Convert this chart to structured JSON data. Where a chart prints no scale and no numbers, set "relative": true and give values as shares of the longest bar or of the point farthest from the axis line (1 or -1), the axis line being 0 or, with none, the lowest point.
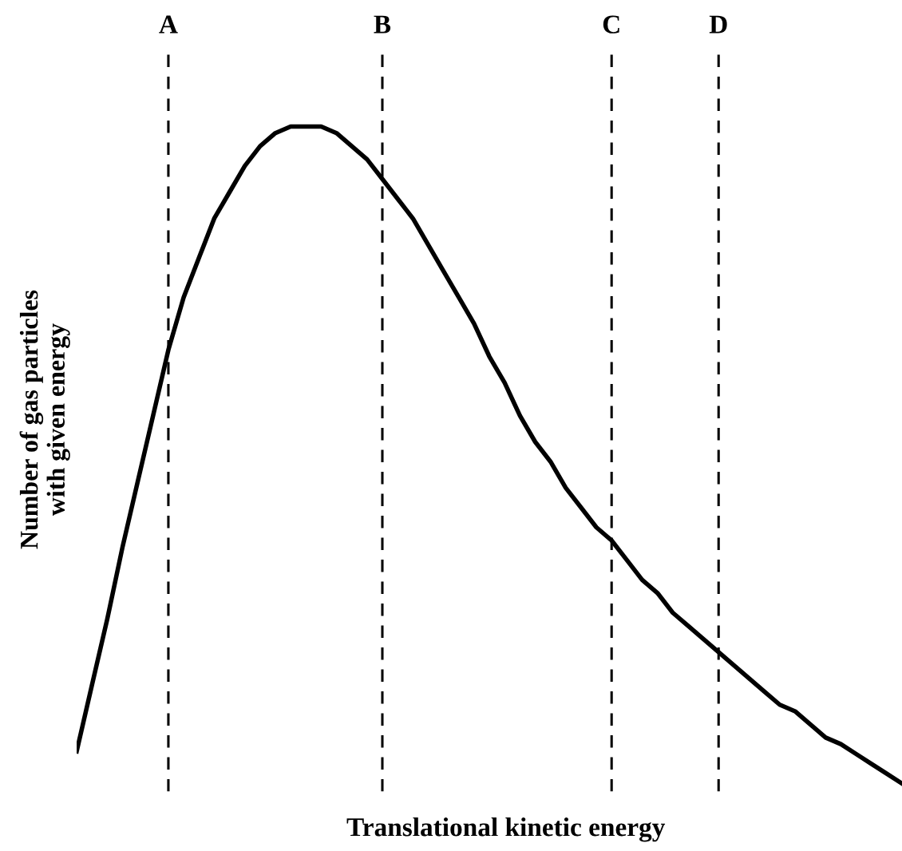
{
  "chart_data": {
    "type": "line",
    "relative": true,
    "xlabel": "Translational kinetic energy",
    "ylabel": "Number of gas particles\nwith given energy",
    "categories": [
      null,
      null,
      null,
      null,
      null,
      null,
      "A",
      null,
      null,
      null,
      null,
      null,
      null,
      null,
      null,
      null,
      null,
      null,
      null,
      null,
      "B",
      null,
      null,
      null,
      null,
      null,
      null,
      null,
      null,
      null,
      null,
      null,
      null,
      null,
      null,
      "C",
      null,
      null,
      null,
      null,
      null,
      null,
      "D",
      null,
      null,
      null,
      null,
      null,
      null,
      null,
      null,
      null,
      null,
      null,
      null
    ],
    "series": [
      {
        "color": "#000000",
        "values": [
          0.049,
          0.15,
          0.25,
          0.36,
          0.46,
          0.56,
          0.66,
          0.74,
          0.8,
          0.86,
          0.9,
          0.94,
          0.97,
          0.99,
          1.0,
          1.0,
          1.0,
          0.99,
          0.97,
          0.95,
          0.92,
          0.89,
          0.86,
          0.82,
          0.78,
          0.74,
          0.7,
          0.65,
          0.61,
          0.56,
          0.52,
          0.49,
          0.45,
          0.42,
          0.39,
          0.37,
          0.34,
          0.31,
          0.29,
          0.26,
          0.24,
          0.22,
          0.2,
          0.18,
          0.16,
          0.14,
          0.12,
          0.11,
          0.09,
          0.07,
          0.06,
          0.045,
          0.03,
          0.015,
          0.0
        ]
      }
    ],
    "ref_lines": [
      {
        "axis": "x",
        "value": "A",
        "color": "#000000",
        "line_style": "dashed"
      },
      {
        "axis": "x",
        "value": "B",
        "color": "#000000",
        "line_style": "dashed"
      },
      {
        "axis": "x",
        "value": "C",
        "color": "#000000",
        "line_style": "dashed"
      },
      {
        "axis": "x",
        "value": "D",
        "color": "#000000",
        "line_style": "dashed"
      }
    ],
    "legend": false,
    "marker": "none",
    "line_style": "solid",
    "tick_labels": "x"
  }
}
